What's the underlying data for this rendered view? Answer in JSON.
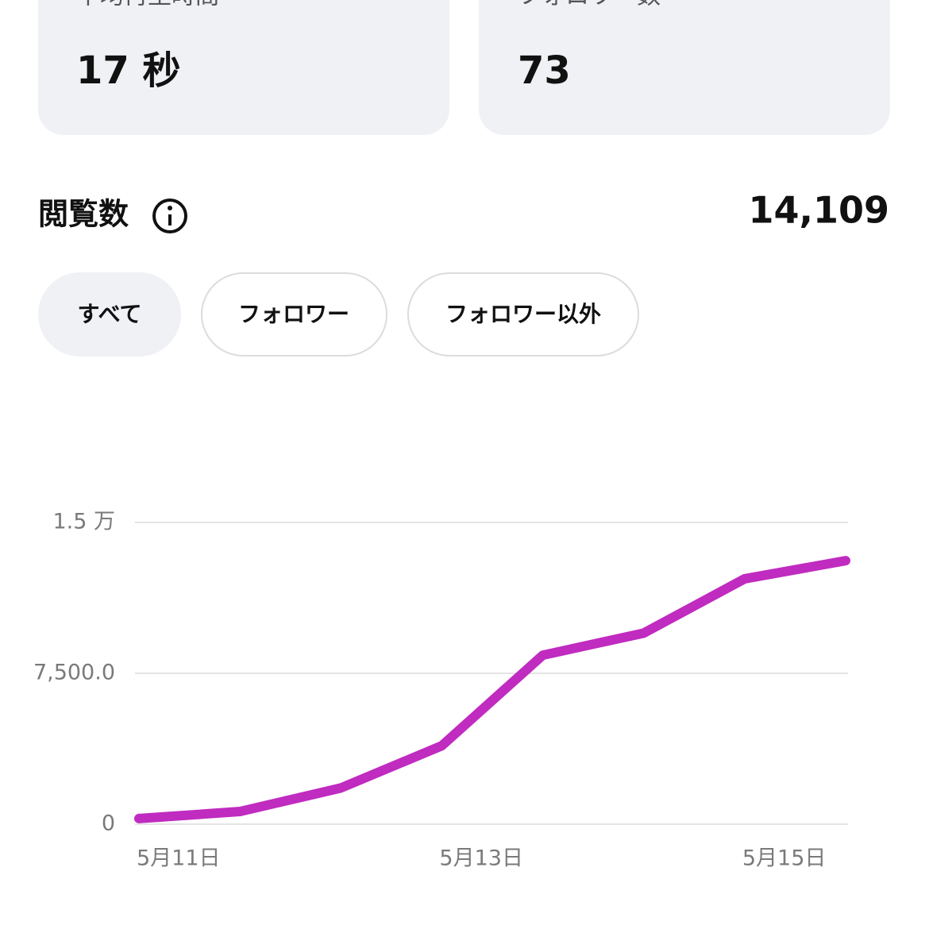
{
  "cards": [
    {
      "label": "平均再生時間",
      "value": "17 秒"
    },
    {
      "label": "フォロワー数",
      "value": "73"
    }
  ],
  "section": {
    "title": "閲覧数",
    "total": "14,109"
  },
  "filters": [
    "すべて",
    "フォロワー",
    "フォロワー以外"
  ],
  "chart_data": {
    "type": "line",
    "categories": [
      "5月11日",
      null,
      null,
      "5月13日",
      null,
      null,
      "5月15日",
      null
    ],
    "series": [
      {
        "color": "#c02bc0",
        "values": [
          280,
          630,
          1800,
          3900,
          8400,
          9500,
          12200,
          13100
        ]
      }
    ],
    "ylim": [
      0,
      15000
    ],
    "yticks": [
      0,
      {
        "value": 7500,
        "label": "7,500.0"
      },
      {
        "value": 15000,
        "label": "1.5 万"
      }
    ],
    "grid": true
  }
}
